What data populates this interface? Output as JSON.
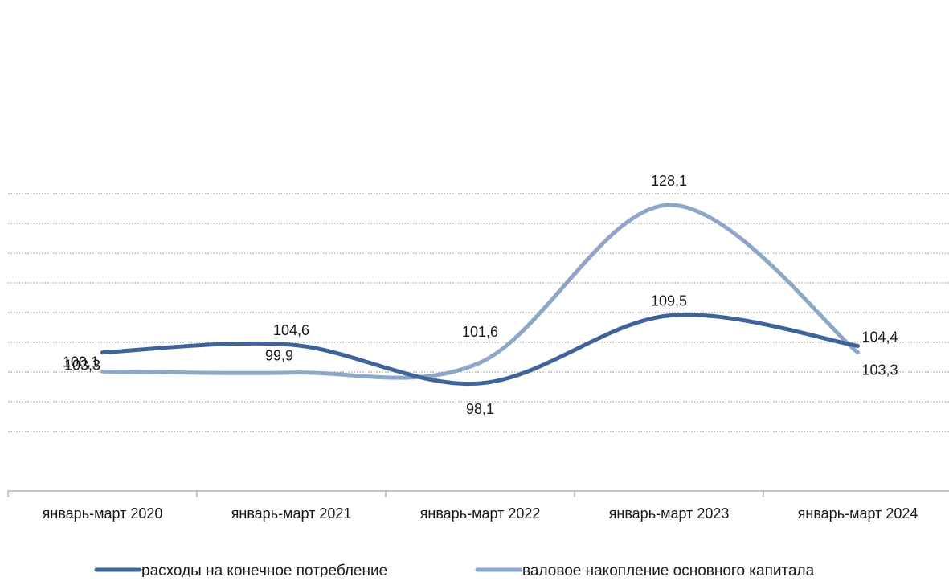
{
  "chart_data": {
    "type": "line",
    "smooth": true,
    "categories": [
      "январь-март 2020",
      "январь-март 2021",
      "январь-март 2022",
      "январь-март 2023",
      "январь-март 2024"
    ],
    "series": [
      {
        "name": "расходы на конечное потребление",
        "values": [
          103.3,
          104.6,
          98.1,
          109.5,
          104.4
        ],
        "labels": [
          "103,3",
          "104,6",
          "98,1",
          "109,5",
          "104,4"
        ],
        "color": "#3f6499"
      },
      {
        "name": "валовое накопление основного капитала",
        "values": [
          100.1,
          99.9,
          101.6,
          128.1,
          103.3
        ],
        "labels": [
          "100,1",
          "99,9",
          "101,6",
          "128,1",
          "103,3"
        ],
        "color": "#8fa6cb"
      }
    ],
    "ylim": [
      90,
      130
    ],
    "grid": true,
    "legend": "bottom"
  }
}
